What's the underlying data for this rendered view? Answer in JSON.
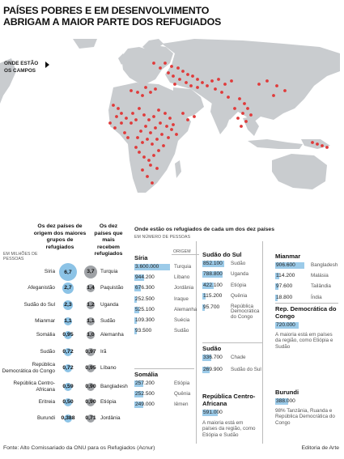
{
  "title": {
    "line1": "PAÍSES POBRES E EM DESENVOLVIMENTO",
    "line2": "ABRIGAM A MAIOR PARTE DOS REFUGIADOS"
  },
  "map": {
    "label_line1": "ONDE ESTÃO",
    "label_line2": "OS CAMPOS",
    "land_color": "#c9cccf",
    "dot_color": "#e03a3a"
  },
  "ranking": {
    "header_origin": "Os dez países de origem dos maiores grupos de refugiados",
    "header_host": "Os dez países que mais recebem refugiados",
    "unit": "EM MILHÕES DE PESSOAS",
    "origin": [
      {
        "country": "Síria",
        "value": "6,7",
        "num": 6.7
      },
      {
        "country": "Afeganistão",
        "value": "2,7",
        "num": 2.7
      },
      {
        "country": "Sudão do Sul",
        "value": "2,3",
        "num": 2.3
      },
      {
        "country": "Mianmar",
        "value": "1,1",
        "num": 1.1
      },
      {
        "country": "Somália",
        "value": "0,95",
        "num": 0.95
      },
      {
        "country": "Sudão",
        "value": "0,72",
        "num": 0.72
      },
      {
        "country": "República Democrática do Congo",
        "value": "0,72",
        "num": 0.72
      },
      {
        "country": "República Centro-Africana",
        "value": "0,59",
        "num": 0.59
      },
      {
        "country": "Eritreia",
        "value": "0,50",
        "num": 0.5
      },
      {
        "country": "Burundi",
        "value": "0,388",
        "num": 0.388
      }
    ],
    "host": [
      {
        "country": "Turquia",
        "value": "3,7",
        "num": 3.7
      },
      {
        "country": "Paquistão",
        "value": "1,4",
        "num": 1.4
      },
      {
        "country": "Uganda",
        "value": "1,2",
        "num": 1.2
      },
      {
        "country": "Sudão",
        "value": "1,1",
        "num": 1.1
      },
      {
        "country": "Alemanha",
        "value": "1,0",
        "num": 1.0
      },
      {
        "country": "Irã",
        "value": "0,97",
        "num": 0.97
      },
      {
        "country": "Líbano",
        "value": "0,95",
        "num": 0.95
      },
      {
        "country": "Bangladesh",
        "value": "0,90",
        "num": 0.9
      },
      {
        "country": "Etiópia",
        "value": "0,90",
        "num": 0.9
      },
      {
        "country": "Jordânia",
        "value": "0,71",
        "num": 0.71
      }
    ]
  },
  "destinations": {
    "header": "Onde estão os refugiados de cada um dos dez países",
    "unit": "EM NÚMERO DE PESSOAS",
    "origin_label": "ORIGEM",
    "blocks": [
      {
        "title": "Síria",
        "rows": [
          {
            "value": "3.600.000",
            "num": 3600000,
            "country": "Turquia"
          },
          {
            "value": "944.200",
            "num": 944200,
            "country": "Líbano"
          },
          {
            "value": "676.300",
            "num": 676300,
            "country": "Jordânia"
          },
          {
            "value": "252.500",
            "num": 252500,
            "country": "Iraque"
          },
          {
            "value": "525.100",
            "num": 525100,
            "country": "Alemanha"
          },
          {
            "value": "109.300",
            "num": 109300,
            "country": "Suécia"
          },
          {
            "value": "93.500",
            "num": 93500,
            "country": "Sudão"
          }
        ]
      },
      {
        "title": "Somália",
        "rows": [
          {
            "value": "257.200",
            "num": 257200,
            "country": "Etiópia"
          },
          {
            "value": "252.500",
            "num": 252500,
            "country": "Quênia"
          },
          {
            "value": "249.000",
            "num": 249000,
            "country": "Iêmen"
          }
        ]
      },
      {
        "title": "Sudão do Sul",
        "rows": [
          {
            "value": "852.100",
            "num": 852100,
            "country": "Sudão"
          },
          {
            "value": "788.800",
            "num": 788800,
            "country": "Uganda"
          },
          {
            "value": "422.100",
            "num": 422100,
            "country": "Etiópia"
          },
          {
            "value": "115.200",
            "num": 115200,
            "country": "Quênia"
          },
          {
            "value": "95.700",
            "num": 95700,
            "country": "República Democrática do Congo"
          }
        ]
      },
      {
        "title": "Sudão",
        "rows": [
          {
            "value": "336.700",
            "num": 336700,
            "country": "Chade"
          },
          {
            "value": "269.900",
            "num": 269900,
            "country": "Sudão do Sul"
          }
        ]
      },
      {
        "title": "República Centro-Africana",
        "rows": [
          {
            "value": "591.000",
            "num": 591000,
            "country": ""
          }
        ],
        "note": "A maioria está em países da região, como Etiópia e Sudão"
      },
      {
        "title": "Mianmar",
        "rows": [
          {
            "value": "906.600",
            "num": 906600,
            "country": "Bangladesh"
          },
          {
            "value": "114.200",
            "num": 114200,
            "country": "Malásia"
          },
          {
            "value": "97.600",
            "num": 97600,
            "country": "Tailândia"
          },
          {
            "value": "18.800",
            "num": 18800,
            "country": "Índia"
          }
        ]
      },
      {
        "title": "Rep. Democrática do Congo",
        "rows": [
          {
            "value": "720.000",
            "num": 720000,
            "country": ""
          }
        ],
        "note": "A maioria está em países da região, como Etiópia e Sudão"
      },
      {
        "title": "Burundi",
        "rows": [
          {
            "value": "388.000",
            "num": 388000,
            "country": ""
          }
        ],
        "note": "98% Tanzânia, Ruanda e República Democrática do Congo"
      }
    ]
  },
  "footer": {
    "source": "Fonte: Alto Comissariado da ONU para os Refugiados (Acnur)",
    "credit": "Editoria de Arte"
  }
}
